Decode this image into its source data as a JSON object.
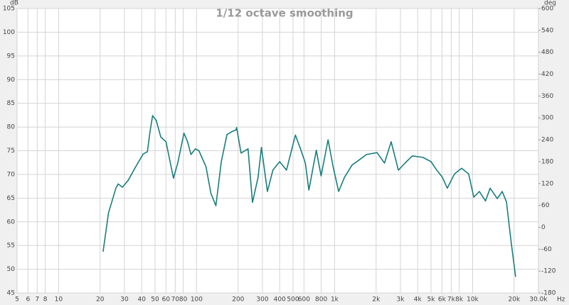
{
  "chart_data": {
    "type": "line",
    "title": "1/12 octave smoothing",
    "y_unit": "dB",
    "y2_unit": "deg",
    "x_unit": "Hz",
    "xscale": "log",
    "grid": true,
    "xlim": [
      5,
      30000
    ],
    "xticks": [
      5,
      6,
      7,
      8,
      10,
      20,
      30,
      40,
      50,
      60,
      70,
      80,
      100,
      200,
      300,
      400,
      500,
      600,
      800,
      {
        "value": 1000,
        "label": "1k"
      },
      {
        "value": 2000,
        "label": "2k"
      },
      {
        "value": 3000,
        "label": "3k"
      },
      {
        "value": 4000,
        "label": "4k"
      },
      {
        "value": 5000,
        "label": "5k"
      },
      {
        "value": 6000,
        "label": "6k"
      },
      {
        "value": 7000,
        "label": "7k"
      },
      {
        "value": 8000,
        "label": "8k"
      },
      {
        "value": 10000,
        "label": "10k"
      },
      {
        "value": 20000,
        "label": "20k"
      },
      {
        "value": 30000,
        "label": "30.0k"
      }
    ],
    "ylim": [
      45,
      105
    ],
    "yticks": [
      45,
      50,
      55,
      60,
      65,
      70,
      75,
      80,
      85,
      90,
      95,
      100,
      105
    ],
    "y2lim": [
      -180,
      600
    ],
    "y2ticks": [
      -180,
      -120,
      -60,
      0,
      60,
      120,
      180,
      240,
      300,
      360,
      420,
      480,
      540,
      600
    ],
    "x": [
      21,
      23,
      26,
      27,
      29,
      32,
      36,
      41,
      44,
      46,
      48,
      51,
      55,
      60,
      68,
      73,
      81,
      86,
      91,
      98,
      104,
      117,
      127,
      138,
      151,
      166,
      182,
      193,
      195,
      210,
      236,
      254,
      279,
      295,
      326,
      357,
      400,
      448,
      520,
      566,
      614,
      651,
      737,
      798,
      897,
      976,
      1070,
      1180,
      1340,
      1515,
      1700,
      2030,
      2300,
      2570,
      2900,
      3240,
      3660,
      4360,
      5000,
      5500,
      6040,
      6560,
      7390,
      8330,
      9370,
      10200,
      11200,
      12400,
      13400,
      15100,
      16400,
      17600,
      19000,
      20500
    ],
    "series": [
      {
        "color": "#1a7d7d",
        "values": [
          53.7,
          61.9,
          67.1,
          68.0,
          67.3,
          68.8,
          71.5,
          74.3,
          74.8,
          79.1,
          82.4,
          81.4,
          77.9,
          76.9,
          69.2,
          72.4,
          78.7,
          76.9,
          74.2,
          75.4,
          75.0,
          71.6,
          66.0,
          63.4,
          72.7,
          78.4,
          79.1,
          79.4,
          79.9,
          74.5,
          75.4,
          64.1,
          69.4,
          75.7,
          66.4,
          70.9,
          72.7,
          70.9,
          78.3,
          75.4,
          72.4,
          66.7,
          75.1,
          69.7,
          77.3,
          71.6,
          66.4,
          69.4,
          72.0,
          73.1,
          74.2,
          74.6,
          72.4,
          76.9,
          70.9,
          72.4,
          73.9,
          73.6,
          72.7,
          70.9,
          69.4,
          67.1,
          70.1,
          71.3,
          70.1,
          65.2,
          66.4,
          64.4,
          67.1,
          64.9,
          66.4,
          64.2,
          55.9,
          48.4
        ]
      }
    ]
  }
}
